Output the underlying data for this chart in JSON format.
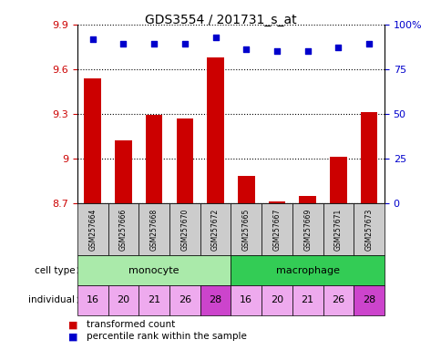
{
  "title": "GDS3554 / 201731_s_at",
  "samples": [
    "GSM257664",
    "GSM257666",
    "GSM257668",
    "GSM257670",
    "GSM257672",
    "GSM257665",
    "GSM257667",
    "GSM257669",
    "GSM257671",
    "GSM257673"
  ],
  "transformed_counts": [
    9.54,
    9.12,
    9.29,
    9.27,
    9.68,
    8.88,
    8.71,
    8.75,
    9.01,
    9.31
  ],
  "percentile_ranks": [
    92,
    89,
    89,
    89,
    93,
    86,
    85,
    85,
    87,
    89
  ],
  "cell_types": [
    "monocyte",
    "monocyte",
    "monocyte",
    "monocyte",
    "monocyte",
    "macrophage",
    "macrophage",
    "macrophage",
    "macrophage",
    "macrophage"
  ],
  "individuals": [
    "16",
    "20",
    "21",
    "26",
    "28",
    "16",
    "20",
    "21",
    "26",
    "28"
  ],
  "ylim_left": [
    8.7,
    9.9
  ],
  "ylim_right": [
    0,
    100
  ],
  "yticks_left": [
    8.7,
    9.0,
    9.3,
    9.6,
    9.9
  ],
  "ytick_labels_left": [
    "8.7",
    "9",
    "9.3",
    "9.6",
    "9.9"
  ],
  "yticks_right": [
    0,
    25,
    50,
    75,
    100
  ],
  "ytick_labels_right": [
    "0",
    "25",
    "50",
    "75",
    "100%"
  ],
  "bar_color": "#cc0000",
  "dot_color": "#0000cc",
  "monocyte_color": "#aaeaaa",
  "macrophage_color": "#33cc55",
  "individual_colors": [
    "#eeaaee",
    "#eeaaee",
    "#eeaaee",
    "#eeaaee",
    "#cc44cc",
    "#eeaaee",
    "#eeaaee",
    "#eeaaee",
    "#eeaaee",
    "#cc44cc"
  ],
  "label_color_left": "#cc0000",
  "label_color_right": "#0000cc",
  "legend_bar_label": "transformed count",
  "legend_dot_label": "percentile rank within the sample",
  "xaxis_bg": "#cccccc"
}
